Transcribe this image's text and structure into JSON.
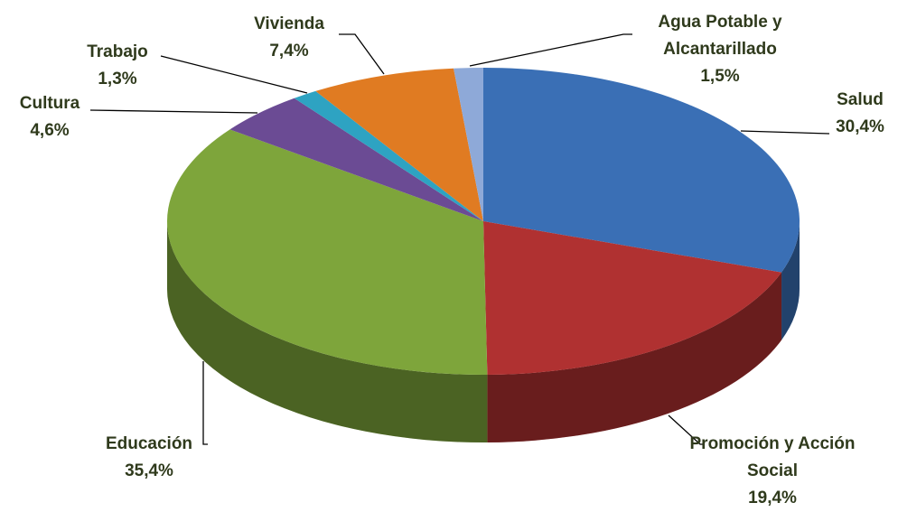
{
  "chart_data": {
    "type": "pie",
    "categories": [
      "Salud",
      "Promoción y Acción Social",
      "Educación",
      "Cultura",
      "Trabajo",
      "Vivienda",
      "Agua Potable y Alcantarillado"
    ],
    "values": [
      30.4,
      19.4,
      35.4,
      4.6,
      1.3,
      7.4,
      1.5
    ],
    "value_labels": [
      "30,4%",
      "19,4%",
      "35,4%",
      "4,6%",
      "1,3%",
      "7,4%",
      "1,5%"
    ],
    "colors": [
      "#3a6fb5",
      "#b03131",
      "#7ea53b",
      "#6b4b94",
      "#2ea3c2",
      "#e07b22",
      "#8ea9d8"
    ]
  }
}
